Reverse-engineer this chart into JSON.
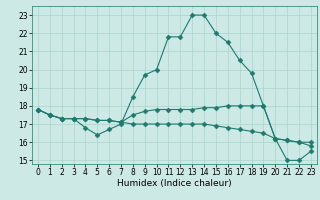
{
  "xlabel": "Humidex (Indice chaleur)",
  "xlim": [
    -0.5,
    23.5
  ],
  "ylim": [
    14.8,
    23.5
  ],
  "yticks": [
    15,
    16,
    17,
    18,
    19,
    20,
    21,
    22,
    23
  ],
  "xticks": [
    0,
    1,
    2,
    3,
    4,
    5,
    6,
    7,
    8,
    9,
    10,
    11,
    12,
    13,
    14,
    15,
    16,
    17,
    18,
    19,
    20,
    21,
    22,
    23
  ],
  "bg_color": "#cce9e5",
  "grid_color": "#aad4ce",
  "line_color": "#1e7a6e",
  "series": [
    [
      17.8,
      17.5,
      17.3,
      17.3,
      16.8,
      16.4,
      16.7,
      17.0,
      18.5,
      19.7,
      20.0,
      21.8,
      21.8,
      23.0,
      23.0,
      22.0,
      21.5,
      20.5,
      19.8,
      18.0,
      16.2,
      15.0,
      15.0,
      15.5
    ],
    [
      17.8,
      17.5,
      17.3,
      17.3,
      17.3,
      17.2,
      17.2,
      17.1,
      17.5,
      17.7,
      17.8,
      17.8,
      17.8,
      17.8,
      17.9,
      17.9,
      18.0,
      18.0,
      18.0,
      18.0,
      16.2,
      16.1,
      16.0,
      16.0
    ],
    [
      17.8,
      17.5,
      17.3,
      17.3,
      17.3,
      17.2,
      17.2,
      17.1,
      17.0,
      17.0,
      17.0,
      17.0,
      17.0,
      17.0,
      17.0,
      16.9,
      16.8,
      16.7,
      16.6,
      16.5,
      16.2,
      16.1,
      16.0,
      15.8
    ]
  ],
  "marker": "D",
  "marker_size": 2.5,
  "linewidth": 0.8,
  "tick_fontsize": 5.5,
  "xlabel_fontsize": 6.5
}
